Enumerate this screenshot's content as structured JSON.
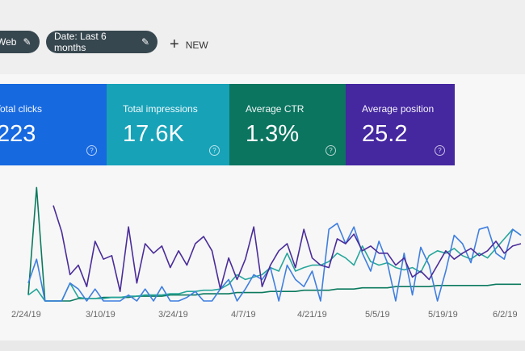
{
  "filters": {
    "type_label": "Web",
    "date_label": "Date: Last 6 months",
    "new_label": "NEW",
    "edit_icon": "pencil-icon",
    "add_icon": "plus-icon"
  },
  "metrics": [
    {
      "label": "Total clicks",
      "value": "223",
      "color": "#1769e0"
    },
    {
      "label": "Total impressions",
      "value": "17.6K",
      "color": "#17a2b8"
    },
    {
      "label": "Average CTR",
      "value": "1.3%",
      "color": "#0b7560"
    },
    {
      "label": "Average position",
      "value": "25.2",
      "color": "#4527a0"
    }
  ],
  "chart_data": {
    "type": "line",
    "x_tick_labels": [
      "2/24/19",
      "3/10/19",
      "3/24/19",
      "4/7/19",
      "4/21/19",
      "5/5/19",
      "5/19/19",
      "6/2/19"
    ],
    "grid": false,
    "series": [
      {
        "color": "#0b7a5e",
        "values": [
          5,
          95,
          0,
          0,
          0,
          0,
          2,
          2,
          2,
          3,
          3,
          3,
          3,
          4,
          4,
          4,
          4,
          5,
          5,
          5,
          5,
          6,
          6,
          6,
          6,
          7,
          7,
          7,
          7,
          8,
          8,
          8,
          8,
          9,
          9,
          9,
          9,
          10,
          10,
          10,
          11,
          11,
          11,
          11,
          12,
          12,
          12,
          12,
          12,
          13,
          13,
          13,
          13,
          13,
          13,
          13,
          14,
          14,
          14,
          14
        ]
      },
      {
        "color": "#26a69a",
        "values": [
          5,
          10,
          0,
          0,
          0,
          15,
          3,
          2,
          2,
          2,
          3,
          3,
          4,
          4,
          5,
          5,
          5,
          6,
          6,
          8,
          8,
          9,
          9,
          10,
          14,
          22,
          18,
          20,
          22,
          28,
          25,
          40,
          25,
          28,
          30,
          30,
          33,
          40,
          36,
          30,
          46,
          33,
          30,
          32,
          28,
          26,
          28,
          24,
          38,
          42,
          40,
          44,
          38,
          35,
          40,
          36,
          44,
          52,
          60,
          55
        ]
      },
      {
        "color": "#3f7fe0",
        "values": [
          15,
          35,
          0,
          0,
          0,
          15,
          10,
          0,
          10,
          0,
          0,
          0,
          5,
          0,
          10,
          0,
          12,
          0,
          0,
          3,
          8,
          0,
          0,
          10,
          18,
          0,
          10,
          22,
          18,
          28,
          0,
          30,
          18,
          12,
          25,
          0,
          60,
          65,
          48,
          62,
          40,
          25,
          50,
          32,
          0,
          40,
          5,
          45,
          30,
          0,
          25,
          55,
          48,
          32,
          60,
          62,
          40,
          35,
          60,
          55
        ]
      },
      {
        "color": "#4a2c9a",
        "values": [
          null,
          null,
          null,
          80,
          58,
          22,
          30,
          12,
          50,
          35,
          38,
          8,
          62,
          15,
          48,
          40,
          46,
          28,
          42,
          30,
          48,
          54,
          42,
          10,
          36,
          18,
          35,
          62,
          12,
          30,
          42,
          48,
          28,
          60,
          36,
          30,
          28,
          52,
          48,
          56,
          42,
          46,
          40,
          40,
          30,
          36,
          20,
          25,
          18,
          30,
          42,
          35,
          40,
          44,
          38,
          42,
          50,
          40,
          46,
          48
        ]
      }
    ]
  }
}
